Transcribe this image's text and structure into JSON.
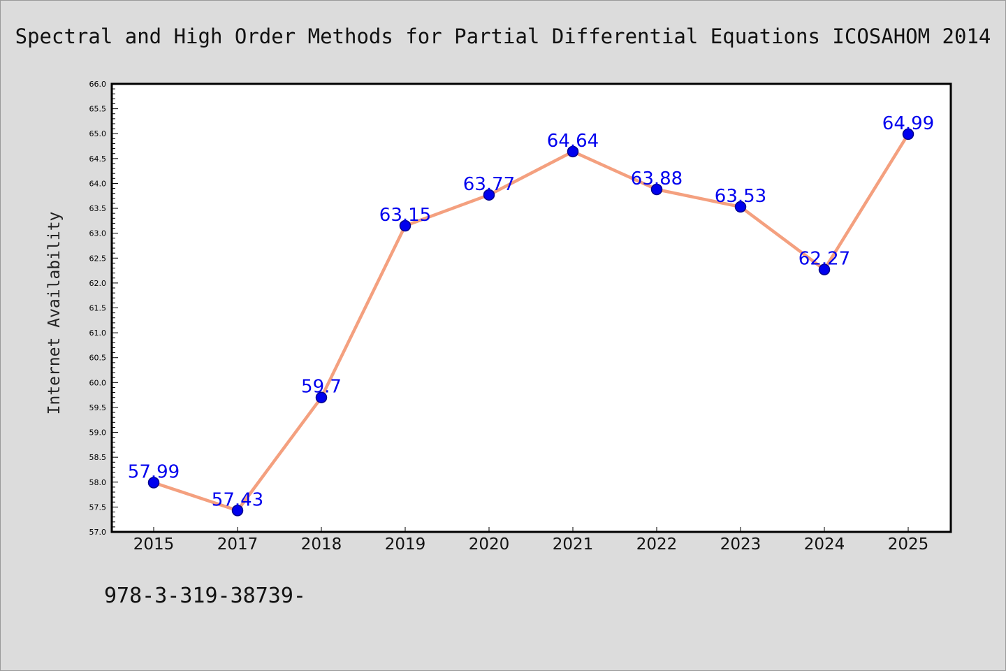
{
  "page": {
    "title": "Spectral and High Order Methods for Partial Differential Equations ICOSAHOM 2014",
    "footer_text": "978-3-319-38739-"
  },
  "chart_data": {
    "type": "line",
    "title": "Spectral and High Order Methods for Partial Differential Equations ICOSAHOM 2014",
    "xlabel": "",
    "ylabel": "Internet Availability",
    "categories": [
      "2015",
      "2017",
      "2018",
      "2019",
      "2020",
      "2021",
      "2022",
      "2023",
      "2024",
      "2025"
    ],
    "series": [
      {
        "values": [
          57.99,
          57.43,
          59.7,
          63.15,
          63.77,
          64.64,
          63.88,
          63.53,
          62.27,
          64.99
        ]
      }
    ],
    "data_labels": [
      "57.99",
      "57.43",
      "59.7",
      "63.15",
      "63.77",
      "64.64",
      "63.88",
      "63.53",
      "62.27",
      "64.99"
    ],
    "ylim": [
      57.0,
      66.0
    ],
    "y_ticks": [
      57.0,
      57.5,
      58.0,
      58.5,
      59.0,
      59.5,
      60.0,
      60.5,
      61.0,
      61.5,
      62.0,
      62.5,
      63.0,
      63.5,
      64.0,
      64.5,
      65.0,
      65.5,
      66.0
    ],
    "y_tick_labels": [
      "57.0",
      "57.5",
      "58.0",
      "58.5",
      "59.0",
      "59.5",
      "60.0",
      "60.5",
      "61.0",
      "61.5",
      "62.0",
      "62.5",
      "63.0",
      "63.5",
      "64.0",
      "64.5",
      "65.0",
      "65.5",
      "66.0"
    ],
    "grid": false,
    "legend": "none",
    "colors": {
      "line": "#f4a07f",
      "marker": "#0000ee",
      "marker_edge": "#00008b",
      "data_label": "#0000ee",
      "axes_background": "#ffffff",
      "page_background": "#dcdcdc"
    }
  }
}
